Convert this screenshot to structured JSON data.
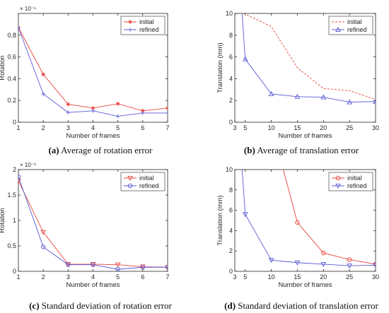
{
  "chart_data": [
    {
      "type": "line",
      "xlabel": "Number of frames",
      "ylabel": "Rotation",
      "exponent_label": "× 10⁻⁵",
      "xlim": [
        1,
        7
      ],
      "ylim": [
        0,
        1.0
      ],
      "xticks": [
        1,
        2,
        3,
        4,
        5,
        6,
        7
      ],
      "yticks": [
        0,
        0.2,
        0.4,
        0.6,
        0.8
      ],
      "legend": "top-right",
      "caption_tag": "(a)",
      "caption_text": " Average of rotation error",
      "series": [
        {
          "name": "initial",
          "color": "#e8453c",
          "marker": "star",
          "dashed": false,
          "x": [
            1,
            2,
            3,
            4,
            5,
            6,
            7
          ],
          "y": [
            0.87,
            0.44,
            0.165,
            0.13,
            0.17,
            0.105,
            0.13
          ]
        },
        {
          "name": "refined",
          "color": "#5a5ad6",
          "marker": "plus",
          "dashed": false,
          "x": [
            1,
            2,
            3,
            4,
            5,
            6,
            7
          ],
          "y": [
            0.87,
            0.26,
            0.09,
            0.105,
            0.055,
            0.085,
            0.085
          ]
        }
      ]
    },
    {
      "type": "line",
      "xlabel": "Number of frames",
      "ylabel": "Translation (mm)",
      "exponent_label": "",
      "xlim": [
        3,
        30
      ],
      "ylim": [
        0,
        10
      ],
      "xticks": [
        3,
        5,
        10,
        15,
        20,
        25,
        30
      ],
      "yticks": [
        0,
        2,
        4,
        6,
        8,
        10
      ],
      "legend": "top-right",
      "caption_tag": "(b)",
      "caption_text": " Average of translation error",
      "series": [
        {
          "name": "initial",
          "color": "#e8453c",
          "marker": "none",
          "dashed": true,
          "x": [
            4.7,
            10,
            15,
            20,
            25,
            30
          ],
          "y": [
            10,
            8.8,
            5.0,
            3.1,
            2.9,
            2.1
          ]
        },
        {
          "name": "refined",
          "color": "#5a5ad6",
          "marker": "triangle",
          "dashed": false,
          "x": [
            4.4,
            5,
            10,
            15,
            20,
            25,
            30
          ],
          "y": [
            10,
            5.8,
            2.6,
            2.35,
            2.3,
            1.85,
            1.9
          ]
        }
      ]
    },
    {
      "type": "line",
      "xlabel": "Number of frames",
      "ylabel": "Rotation",
      "exponent_label": "× 10⁻⁵",
      "xlim": [
        1,
        7
      ],
      "ylim": [
        0,
        2
      ],
      "xticks": [
        1,
        2,
        3,
        4,
        5,
        6,
        7
      ],
      "yticks": [
        0,
        0.5,
        1,
        1.5,
        2
      ],
      "legend": "top-right",
      "caption_tag": "(c)",
      "caption_text": " Standard deviation of rotation error",
      "series": [
        {
          "name": "initial",
          "color": "#e8453c",
          "marker": "triangle-down",
          "dashed": false,
          "x": [
            1,
            2,
            3,
            4,
            5,
            6,
            7
          ],
          "y": [
            1.78,
            0.77,
            0.14,
            0.14,
            0.13,
            0.09,
            0.08
          ]
        },
        {
          "name": "refined",
          "color": "#5a5ad6",
          "marker": "circle",
          "dashed": false,
          "x": [
            1,
            2,
            3,
            4,
            5,
            6,
            7
          ],
          "y": [
            1.86,
            0.48,
            0.13,
            0.13,
            0.04,
            0.08,
            0.08
          ]
        }
      ]
    },
    {
      "type": "line",
      "xlabel": "Number of frames",
      "ylabel": "Translation (mm)",
      "exponent_label": "",
      "xlim": [
        3,
        30
      ],
      "ylim": [
        0,
        10
      ],
      "xticks": [
        3,
        5,
        10,
        15,
        20,
        25,
        30
      ],
      "yticks": [
        0,
        2,
        4,
        6,
        8,
        10
      ],
      "legend": "top-right",
      "caption_tag": "(d)",
      "caption_text": " Standard deviation of translation error",
      "series": [
        {
          "name": "initial",
          "color": "#e8453c",
          "marker": "circle",
          "dashed": false,
          "x": [
            12.3,
            15,
            20,
            25,
            30
          ],
          "y": [
            10,
            4.8,
            1.8,
            1.15,
            0.7
          ]
        },
        {
          "name": "refined",
          "color": "#5a5ad6",
          "marker": "triangle-down",
          "dashed": false,
          "x": [
            4.4,
            5,
            10,
            15,
            20,
            25,
            30
          ],
          "y": [
            10,
            5.6,
            1.1,
            0.85,
            0.7,
            0.55,
            0.6
          ]
        }
      ]
    }
  ]
}
